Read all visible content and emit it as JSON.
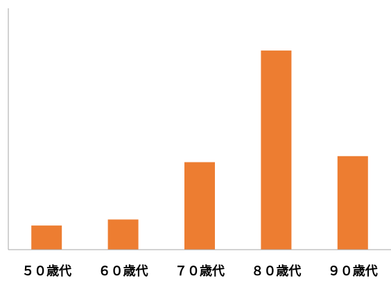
{
  "chart_data": {
    "type": "bar",
    "categories": [
      "５０歳代",
      "６０歳代",
      "７０歳代",
      "８０歳代",
      "９０歳代"
    ],
    "values": [
      4,
      5,
      14.5,
      33,
      15.5
    ],
    "ylim": [
      0,
      40
    ],
    "grid": false,
    "legend": "none",
    "title": "",
    "xlabel": "",
    "ylabel": ""
  },
  "colors": {
    "bar": "#ed7d31",
    "axis": "#a6a6a6",
    "label": "#000000"
  }
}
